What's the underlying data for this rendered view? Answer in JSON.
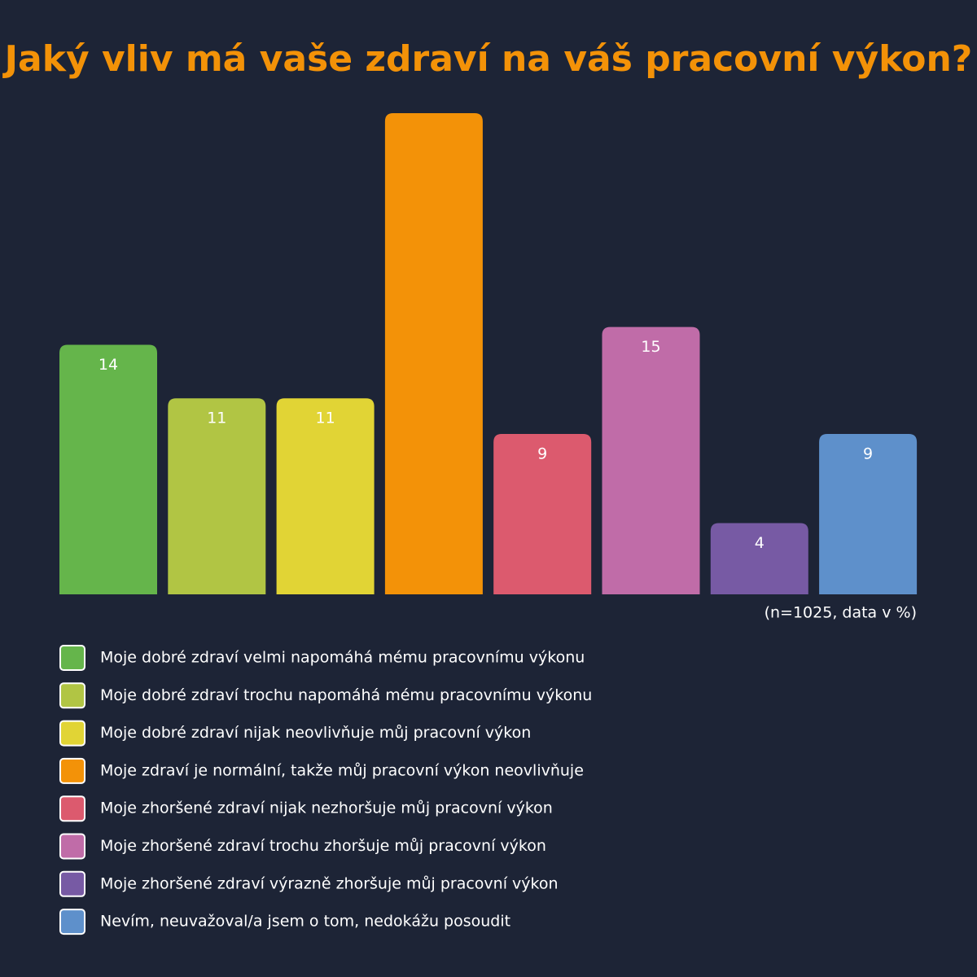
{
  "chart_data": {
    "type": "bar",
    "title": "Jaký vliv má vaše zdraví na váš pracovní výkon?",
    "note": "(n=1025, data v %)",
    "categories": [
      "Moje dobré zdraví velmi napomáhá mému pracovnímu výkonu",
      "Moje dobré zdraví trochu napomáhá mému pracovnímu výkonu",
      "Moje dobré zdraví nijak neovlivňuje můj pracovní výkon",
      "Moje zdraví je normální, takže můj pracovní výkon neovlivňuje",
      "Moje zhoršené zdraví nijak nezhoršuje můj pracovní výkon",
      "Moje zhoršené zdraví trochu zhoršuje můj pracovní výkon",
      "Moje zhoršené zdraví výrazně zhoršuje můj pracovní výkon",
      "Nevím, neuvažoval/a jsem o tom, nedokážu posoudit"
    ],
    "values": [
      14,
      11,
      11,
      27,
      9,
      15,
      4,
      9
    ],
    "value_labels": [
      "14",
      "11",
      "11",
      null,
      "9",
      "15",
      "4",
      "9"
    ],
    "colors": [
      "#65b54b",
      "#b1c544",
      "#e1d435",
      "#f39208",
      "#dc5a6e",
      "#c06ca8",
      "#775aa4",
      "#5e90cb"
    ],
    "ylim": [
      0,
      27
    ]
  }
}
